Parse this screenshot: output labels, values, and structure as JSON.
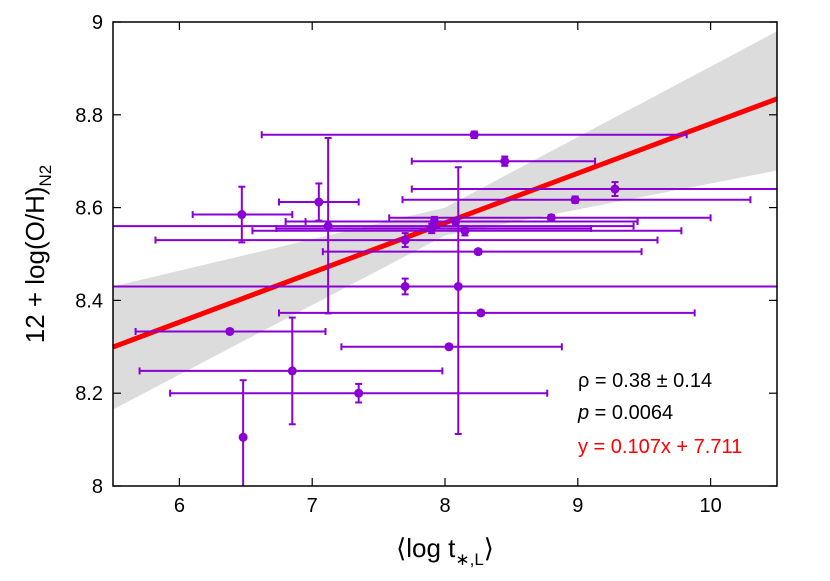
{
  "chart_data": {
    "type": "scatter",
    "title": "",
    "xlabel": "⟨log t∗,L⟩",
    "xlabel_parts": {
      "open": "⟨log t",
      "sub": "∗,L",
      "close": "⟩"
    },
    "ylabel": "12 + log(O/H)N2",
    "ylabel_parts": {
      "main": "12 + log(O/H)",
      "sub": "N2"
    },
    "xlim": [
      5.5,
      10.5
    ],
    "ylim": [
      8.0,
      9.0
    ],
    "x_ticks": [
      6,
      7,
      8,
      9,
      10
    ],
    "y_ticks": [
      8,
      8.2,
      8.4,
      8.6,
      8.8,
      9
    ],
    "x_tick_labels": [
      "6",
      "7",
      "8",
      "9",
      "10"
    ],
    "y_tick_labels": [
      "8",
      "8.2",
      "8.4",
      "8.6",
      "8.8",
      "9"
    ],
    "grid": false,
    "series": [
      {
        "color": "#8a00d4",
        "points": [
          {
            "x": 8.22,
            "y": 8.757,
            "xerr": [
              6.62,
              9.82
            ],
            "yerr": [
              8.75,
              8.764
            ]
          },
          {
            "x": 8.45,
            "y": 8.7,
            "xerr": [
              7.75,
              9.13
            ],
            "yerr": [
              8.69,
              8.71
            ]
          },
          {
            "x": 9.28,
            "y": 8.64,
            "xerr": [
              7.75,
              10.5
            ],
            "yerr": [
              8.625,
              8.655
            ]
          },
          {
            "x": 8.98,
            "y": 8.617,
            "xerr": [
              7.68,
              10.3
            ],
            "yerr": [
              8.61,
              8.624
            ]
          },
          {
            "x": 7.05,
            "y": 8.612,
            "xerr": [
              6.75,
              7.35
            ],
            "yerr": [
              8.572,
              8.652
            ]
          },
          {
            "x": 6.47,
            "y": 8.585,
            "xerr": [
              6.1,
              6.85
            ],
            "yerr": [
              8.525,
              8.645
            ]
          },
          {
            "x": 8.8,
            "y": 8.578,
            "xerr": [
              7.58,
              10.0
            ],
            "yerr": [
              8.572,
              8.584
            ]
          },
          {
            "x": 7.92,
            "y": 8.57,
            "xerr": [
              6.8,
              9.45
            ],
            "yerr": [
              8.56,
              8.58
            ]
          },
          {
            "x": 8.08,
            "y": 8.57,
            "xerr": [
              6.95,
              9.45
            ],
            "yerr": [
              8.565,
              8.575
            ]
          },
          {
            "x": 7.12,
            "y": 8.56,
            "xerr": [
              5.5,
              9.42
            ],
            "yerr": [
              8.372,
              8.75
            ]
          },
          {
            "x": 7.9,
            "y": 8.555,
            "xerr": [
              6.73,
              9.1
            ],
            "yerr": [
              8.545,
              8.565
            ]
          },
          {
            "x": 8.15,
            "y": 8.55,
            "xerr": [
              6.55,
              9.78
            ],
            "yerr": [
              8.54,
              8.56
            ]
          },
          {
            "x": 7.7,
            "y": 8.53,
            "xerr": [
              5.82,
              9.6
            ],
            "yerr": [
              8.515,
              8.545
            ]
          },
          {
            "x": 8.25,
            "y": 8.505,
            "xerr": [
              7.08,
              9.48
            ],
            "yerr": [
              8.5,
              8.51
            ]
          },
          {
            "x": 7.7,
            "y": 8.43,
            "xerr": [
              5.5,
              10.5
            ],
            "yerr": [
              8.413,
              8.447
            ]
          },
          {
            "x": 8.1,
            "y": 8.43,
            "xerr": [
              5.5,
              10.5
            ],
            "yerr": [
              8.112,
              8.687
            ]
          },
          {
            "x": 8.27,
            "y": 8.373,
            "xerr": [
              6.75,
              9.88
            ],
            "yerr": [
              8.368,
              8.378
            ]
          },
          {
            "x": 6.38,
            "y": 8.333,
            "xerr": [
              5.67,
              7.1
            ],
            "yerr": [
              8.328,
              8.338
            ]
          },
          {
            "x": 8.03,
            "y": 8.3,
            "xerr": [
              7.22,
              8.88
            ],
            "yerr": [
              8.295,
              8.305
            ]
          },
          {
            "x": 6.85,
            "y": 8.248,
            "xerr": [
              5.7,
              7.98
            ],
            "yerr": [
              8.133,
              8.363
            ]
          },
          {
            "x": 7.35,
            "y": 8.2,
            "xerr": [
              5.93,
              8.77
            ],
            "yerr": [
              8.18,
              8.22
            ]
          },
          {
            "x": 6.48,
            "y": 8.105,
            "xerr": [
              6.48,
              6.48
            ],
            "yerr": [
              8.0,
              8.228
            ]
          }
        ]
      }
    ],
    "fit": {
      "slope": 0.107,
      "intercept": 7.711,
      "color": "#ff0000"
    },
    "confidence_band": {
      "color": "#dcdcdc",
      "upper": [
        {
          "x": 5.5,
          "y": 8.43
        },
        {
          "x": 8.0,
          "y": 8.6
        },
        {
          "x": 10.5,
          "y": 8.98
        }
      ],
      "lower": [
        {
          "x": 5.5,
          "y": 8.165
        },
        {
          "x": 8.0,
          "y": 8.54
        },
        {
          "x": 10.5,
          "y": 8.68
        }
      ]
    },
    "annotations": {
      "rho": "ρ = 0.38 ± 0.14",
      "p_symbol": "p",
      "p_value": " = 0.0064",
      "fit_label": "y = 0.107x + 7.711",
      "fit_label_color": "#ff0000"
    }
  }
}
